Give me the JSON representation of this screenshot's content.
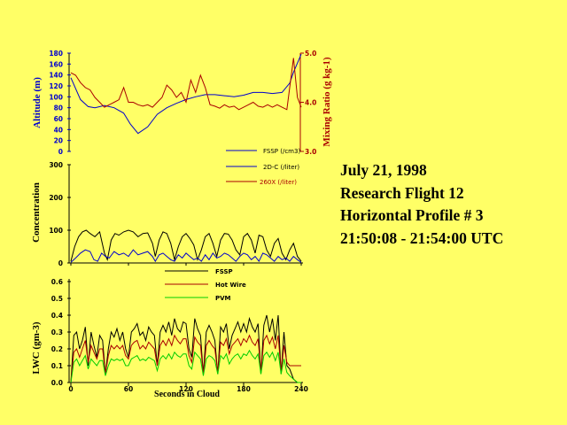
{
  "info": {
    "date": "July 21, 1998",
    "flight": "Research Flight 12",
    "profile": "Horizontal Profile # 3",
    "time": "21:50:08 - 21:54:00 UTC"
  },
  "colors": {
    "background": "#ffff66",
    "blue": "#0000cc",
    "red": "#aa0000",
    "green": "#00cc00",
    "black": "#000000"
  },
  "chart_data": [
    {
      "type": "line",
      "ylabel": "Altitude (m)",
      "y2label": "Mixing Ratio (g kg-1)",
      "ylim": [
        0,
        180
      ],
      "y2lim": [
        3.0,
        5.0
      ],
      "yticks": [
        0,
        20,
        40,
        60,
        80,
        100,
        120,
        140,
        160,
        180
      ],
      "y2ticks": [
        "3.0",
        "4.0",
        "5.0"
      ],
      "series": [
        {
          "color": "blue",
          "axis": "left",
          "x": [
            0,
            10,
            18,
            25,
            35,
            45,
            55,
            62,
            70,
            80,
            90,
            100,
            110,
            120,
            130,
            140,
            150,
            160,
            170,
            180,
            190,
            200,
            210,
            220,
            228,
            232,
            240
          ],
          "y": [
            135,
            95,
            82,
            80,
            84,
            80,
            70,
            50,
            33,
            45,
            68,
            80,
            88,
            95,
            100,
            104,
            104,
            102,
            100,
            103,
            108,
            108,
            106,
            108,
            125,
            145,
            178
          ]
        },
        {
          "color": "red",
          "axis": "right",
          "x": [
            0,
            5,
            10,
            15,
            20,
            25,
            30,
            35,
            40,
            45,
            50,
            55,
            60,
            65,
            70,
            75,
            80,
            85,
            90,
            95,
            100,
            105,
            110,
            115,
            120,
            125,
            130,
            135,
            140,
            145,
            150,
            155,
            160,
            165,
            170,
            175,
            180,
            185,
            190,
            195,
            200,
            205,
            210,
            215,
            220,
            225,
            228,
            232,
            236,
            240
          ],
          "y": [
            4.6,
            4.55,
            4.4,
            4.3,
            4.25,
            4.1,
            4.0,
            3.9,
            3.95,
            4.0,
            4.05,
            4.3,
            4.0,
            4.0,
            3.95,
            3.92,
            3.95,
            3.9,
            4.0,
            4.1,
            4.35,
            4.25,
            4.1,
            4.2,
            4.0,
            4.45,
            4.2,
            4.55,
            4.3,
            3.95,
            3.92,
            3.88,
            3.95,
            3.9,
            3.92,
            3.85,
            3.9,
            3.95,
            4.0,
            3.92,
            3.9,
            3.95,
            3.9,
            3.95,
            3.9,
            3.85,
            4.3,
            4.9,
            4.1,
            3.9
          ]
        }
      ],
      "legend": [
        {
          "label": "FSSP (/cm3)",
          "color": "blue"
        },
        {
          "label": "2D-C (/liter)",
          "color": "blue"
        },
        {
          "label": "260X (/liter)",
          "color": "red"
        }
      ]
    },
    {
      "type": "line",
      "ylabel": "Concentration",
      "ylim": [
        0,
        300
      ],
      "yticks": [
        0,
        100,
        200,
        300
      ],
      "series": [
        {
          "color": "black",
          "x": [
            0,
            4,
            8,
            12,
            16,
            20,
            25,
            30,
            35,
            38,
            42,
            46,
            50,
            55,
            60,
            65,
            70,
            75,
            80,
            85,
            88,
            92,
            96,
            100,
            104,
            108,
            112,
            116,
            120,
            124,
            128,
            132,
            136,
            140,
            144,
            148,
            152,
            156,
            160,
            164,
            168,
            172,
            176,
            180,
            184,
            188,
            192,
            196,
            200,
            204,
            208,
            212,
            216,
            220,
            224,
            228,
            232,
            236,
            240
          ],
          "y": [
            5,
            50,
            80,
            95,
            100,
            90,
            80,
            95,
            30,
            10,
            70,
            90,
            85,
            95,
            100,
            95,
            80,
            90,
            92,
            60,
            20,
            70,
            95,
            90,
            60,
            10,
            50,
            80,
            90,
            75,
            55,
            10,
            40,
            80,
            90,
            60,
            20,
            70,
            90,
            88,
            70,
            40,
            25,
            80,
            90,
            70,
            30,
            85,
            80,
            40,
            20,
            60,
            75,
            30,
            10,
            40,
            60,
            20,
            5
          ]
        },
        {
          "color": "blue",
          "x": [
            0,
            5,
            10,
            15,
            20,
            24,
            28,
            32,
            36,
            40,
            45,
            50,
            55,
            60,
            65,
            70,
            75,
            80,
            85,
            88,
            92,
            96,
            100,
            104,
            108,
            112,
            116,
            120,
            124,
            128,
            132,
            136,
            140,
            144,
            148,
            152,
            156,
            160,
            164,
            168,
            172,
            176,
            180,
            184,
            188,
            192,
            196,
            200,
            204,
            208,
            212,
            216,
            220,
            224,
            228,
            232,
            236,
            240
          ],
          "y": [
            2,
            15,
            30,
            40,
            35,
            10,
            5,
            30,
            20,
            15,
            35,
            25,
            30,
            20,
            40,
            25,
            30,
            35,
            20,
            5,
            25,
            30,
            20,
            10,
            5,
            25,
            15,
            30,
            20,
            10,
            15,
            5,
            25,
            10,
            30,
            15,
            20,
            30,
            25,
            15,
            5,
            20,
            30,
            25,
            10,
            20,
            5,
            30,
            25,
            15,
            5,
            20,
            10,
            15,
            5,
            20,
            10,
            2
          ]
        }
      ]
    },
    {
      "type": "line",
      "xlabel": "Seconds in Cloud",
      "ylabel": "LWC (gm-3)",
      "xlim": [
        0,
        240
      ],
      "ylim": [
        0,
        0.6
      ],
      "xticks": [
        0,
        60,
        120,
        180,
        240
      ],
      "yticks": [
        "0.0",
        "0.1",
        "0.2",
        "0.3",
        "0.4",
        "0.5",
        "0.6"
      ],
      "legend": [
        {
          "label": "FSSP",
          "color": "black"
        },
        {
          "label": "Hot Wire",
          "color": "red"
        },
        {
          "label": "PVM",
          "color": "green"
        }
      ],
      "series": [
        {
          "color": "black",
          "x": [
            0,
            3,
            6,
            9,
            12,
            15,
            18,
            21,
            24,
            27,
            30,
            33,
            36,
            39,
            42,
            45,
            48,
            51,
            54,
            57,
            60,
            63,
            66,
            69,
            72,
            75,
            78,
            81,
            84,
            87,
            90,
            93,
            96,
            99,
            102,
            105,
            108,
            111,
            114,
            117,
            120,
            123,
            126,
            129,
            132,
            135,
            138,
            141,
            144,
            147,
            150,
            153,
            156,
            159,
            162,
            165,
            168,
            171,
            174,
            177,
            180,
            183,
            186,
            189,
            192,
            195,
            198,
            201,
            204,
            207,
            210,
            213,
            216,
            219,
            222,
            225,
            228,
            232,
            236,
            240
          ],
          "y": [
            0.0,
            0.28,
            0.3,
            0.2,
            0.25,
            0.33,
            0.1,
            0.3,
            0.22,
            0.15,
            0.28,
            0.25,
            0.05,
            0.2,
            0.3,
            0.27,
            0.32,
            0.25,
            0.3,
            0.2,
            0.15,
            0.3,
            0.32,
            0.35,
            0.28,
            0.3,
            0.25,
            0.33,
            0.3,
            0.28,
            0.1,
            0.3,
            0.34,
            0.3,
            0.36,
            0.28,
            0.38,
            0.32,
            0.3,
            0.36,
            0.35,
            0.2,
            0.15,
            0.38,
            0.32,
            0.28,
            0.05,
            0.3,
            0.34,
            0.3,
            0.25,
            0.05,
            0.33,
            0.3,
            0.35,
            0.2,
            0.28,
            0.32,
            0.36,
            0.3,
            0.35,
            0.3,
            0.38,
            0.33,
            0.3,
            0.35,
            0.05,
            0.34,
            0.4,
            0.3,
            0.38,
            0.25,
            0.4,
            0.05,
            0.3,
            0.1,
            0.08,
            0.02,
            0.0,
            0.0
          ]
        },
        {
          "color": "red",
          "x": [
            0,
            3,
            6,
            9,
            12,
            15,
            18,
            21,
            24,
            27,
            30,
            33,
            36,
            39,
            42,
            45,
            48,
            51,
            54,
            57,
            60,
            63,
            66,
            69,
            72,
            75,
            78,
            81,
            84,
            87,
            90,
            93,
            96,
            99,
            102,
            105,
            108,
            111,
            114,
            117,
            120,
            123,
            126,
            129,
            132,
            135,
            138,
            141,
            144,
            147,
            150,
            153,
            156,
            159,
            162,
            165,
            168,
            171,
            174,
            177,
            180,
            183,
            186,
            189,
            192,
            195,
            198,
            201,
            204,
            207,
            210,
            213,
            216,
            219,
            222,
            225,
            228,
            232,
            236,
            240
          ],
          "y": [
            0.0,
            0.18,
            0.2,
            0.15,
            0.2,
            0.25,
            0.12,
            0.22,
            0.18,
            0.14,
            0.2,
            0.2,
            0.05,
            0.16,
            0.22,
            0.2,
            0.22,
            0.2,
            0.22,
            0.16,
            0.14,
            0.22,
            0.24,
            0.25,
            0.2,
            0.22,
            0.2,
            0.24,
            0.22,
            0.2,
            0.1,
            0.22,
            0.25,
            0.22,
            0.26,
            0.22,
            0.28,
            0.25,
            0.23,
            0.26,
            0.26,
            0.16,
            0.12,
            0.27,
            0.24,
            0.22,
            0.05,
            0.22,
            0.25,
            0.22,
            0.2,
            0.06,
            0.24,
            0.22,
            0.26,
            0.17,
            0.22,
            0.24,
            0.26,
            0.22,
            0.26,
            0.24,
            0.28,
            0.24,
            0.22,
            0.26,
            0.06,
            0.25,
            0.28,
            0.23,
            0.27,
            0.2,
            0.28,
            0.06,
            0.22,
            0.12,
            0.1,
            0.1,
            0.1,
            0.1
          ]
        },
        {
          "color": "green",
          "x": [
            0,
            3,
            6,
            9,
            12,
            15,
            18,
            21,
            24,
            27,
            30,
            33,
            36,
            39,
            42,
            45,
            48,
            51,
            54,
            57,
            60,
            63,
            66,
            69,
            72,
            75,
            78,
            81,
            84,
            87,
            90,
            93,
            96,
            99,
            102,
            105,
            108,
            111,
            114,
            117,
            120,
            123,
            126,
            129,
            132,
            135,
            138,
            141,
            144,
            147,
            150,
            153,
            156,
            159,
            162,
            165,
            168,
            171,
            174,
            177,
            180,
            183,
            186,
            189,
            192,
            195,
            198,
            201,
            204,
            207,
            210,
            213,
            216,
            219,
            222,
            225,
            228,
            232,
            236,
            240
          ],
          "y": [
            0.0,
            0.12,
            0.14,
            0.1,
            0.13,
            0.16,
            0.08,
            0.14,
            0.12,
            0.1,
            0.13,
            0.13,
            0.04,
            0.1,
            0.14,
            0.13,
            0.14,
            0.13,
            0.14,
            0.1,
            0.1,
            0.14,
            0.15,
            0.16,
            0.13,
            0.14,
            0.13,
            0.15,
            0.14,
            0.13,
            0.07,
            0.14,
            0.16,
            0.14,
            0.17,
            0.14,
            0.18,
            0.16,
            0.15,
            0.17,
            0.17,
            0.1,
            0.08,
            0.18,
            0.16,
            0.14,
            0.04,
            0.14,
            0.16,
            0.15,
            0.13,
            0.05,
            0.16,
            0.14,
            0.17,
            0.11,
            0.14,
            0.16,
            0.17,
            0.14,
            0.17,
            0.16,
            0.19,
            0.16,
            0.14,
            0.17,
            0.05,
            0.16,
            0.18,
            0.15,
            0.18,
            0.13,
            0.18,
            0.05,
            0.14,
            0.06,
            0.04,
            0.02,
            0.0,
            0.0
          ]
        }
      ]
    }
  ]
}
